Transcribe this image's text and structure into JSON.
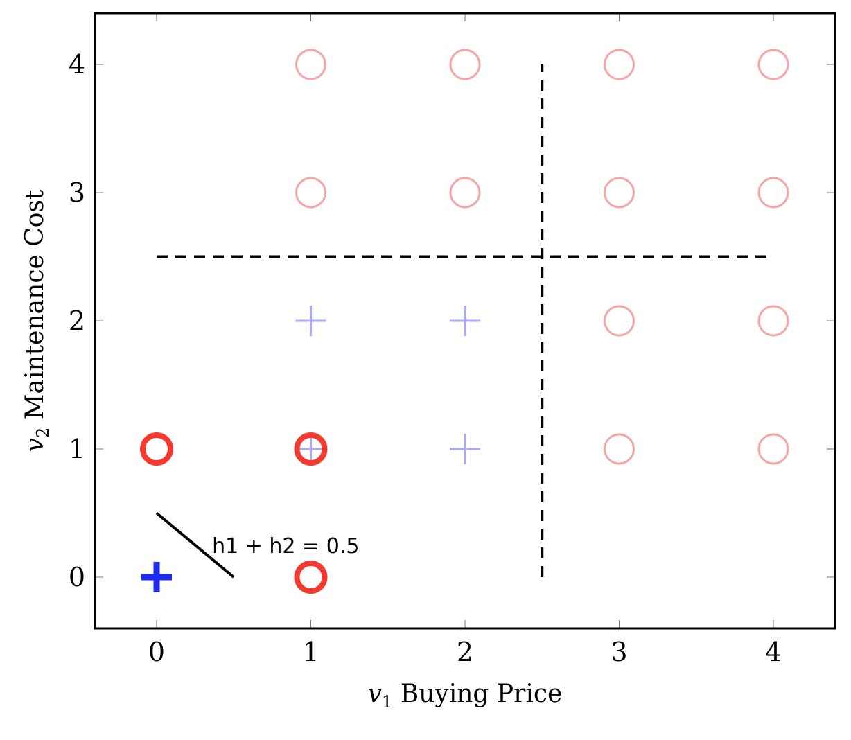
{
  "chart_data": {
    "type": "scatter",
    "title": "",
    "xlabel_var": "v",
    "xlabel_sub": "1",
    "xlabel_text": "Buying Price",
    "ylabel_var": "v",
    "ylabel_sub": "2",
    "ylabel_text": "Maintenance Cost",
    "xlim": [
      -0.4,
      4.4
    ],
    "ylim": [
      -0.4,
      4.4
    ],
    "xticks": [
      0,
      1,
      2,
      3,
      4
    ],
    "yticks": [
      0,
      1,
      2,
      3,
      4
    ],
    "grid": false,
    "series": [
      {
        "marker": "circle",
        "emphasis": "faded",
        "color": "#f5a6a6",
        "points": [
          [
            1,
            4
          ],
          [
            2,
            4
          ],
          [
            3,
            4
          ],
          [
            4,
            4
          ],
          [
            1,
            3
          ],
          [
            2,
            3
          ],
          [
            3,
            3
          ],
          [
            4,
            3
          ],
          [
            3,
            2
          ],
          [
            4,
            2
          ],
          [
            3,
            1
          ],
          [
            4,
            1
          ]
        ]
      },
      {
        "marker": "plus",
        "emphasis": "faded",
        "color": "#a9a9f7",
        "points": [
          [
            1,
            2
          ],
          [
            2,
            2
          ],
          [
            1,
            1
          ],
          [
            2,
            1
          ]
        ]
      },
      {
        "marker": "circle",
        "emphasis": "bold",
        "color": "#f43a2f",
        "points": [
          [
            0,
            1
          ],
          [
            1,
            1
          ],
          [
            1,
            0
          ]
        ]
      },
      {
        "marker": "plus",
        "emphasis": "bold",
        "color": "#1d2bf2",
        "points": [
          [
            0,
            0
          ]
        ]
      }
    ],
    "lines": [
      {
        "style": "dashed",
        "x": [
          2.5,
          2.5
        ],
        "y": [
          0,
          4
        ]
      },
      {
        "style": "dashed",
        "x": [
          0,
          4
        ],
        "y": [
          2.5,
          2.5
        ]
      },
      {
        "style": "solid",
        "x": [
          0,
          0.5
        ],
        "y": [
          0.5,
          0
        ]
      }
    ],
    "annotations": [
      {
        "text": "h1 + h2 = 0.5",
        "x": 0.36,
        "y": 0.19
      }
    ]
  }
}
